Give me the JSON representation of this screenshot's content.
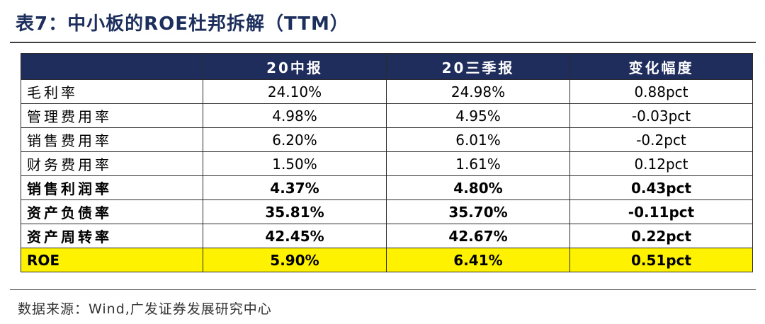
{
  "title": "表7：中小板的ROE杜邦拆解（TTM）",
  "table": {
    "headers": [
      "",
      "20中报",
      "20三季报",
      "变化幅度"
    ],
    "rows": [
      {
        "label": "毛利率",
        "h1": "24.10%",
        "q3": "24.98%",
        "change": "0.88pct"
      },
      {
        "label": "管理费用率",
        "h1": "4.98%",
        "q3": "4.95%",
        "change": "-0.03pct"
      },
      {
        "label": "销售费用率",
        "h1": "6.20%",
        "q3": "6.01%",
        "change": "-0.2pct"
      },
      {
        "label": "财务费用率",
        "h1": "1.50%",
        "q3": "1.61%",
        "change": "0.12pct"
      },
      {
        "label": "销售利润率",
        "h1": "4.37%",
        "q3": "4.80%",
        "change": "0.43pct"
      },
      {
        "label": "资产负债率",
        "h1": "35.81%",
        "q3": "35.70%",
        "change": "-0.11pct"
      },
      {
        "label": "资产周转率",
        "h1": "42.45%",
        "q3": "42.67%",
        "change": "0.22pct"
      },
      {
        "label": "ROE",
        "h1": "5.90%",
        "q3": "6.41%",
        "change": "0.51pct"
      }
    ]
  },
  "source": "数据来源：Wind,广发证券发展研究中心",
  "colors": {
    "header_bg": "#1f2d5c",
    "title": "#1c2e5c",
    "highlight": "#fff200"
  }
}
